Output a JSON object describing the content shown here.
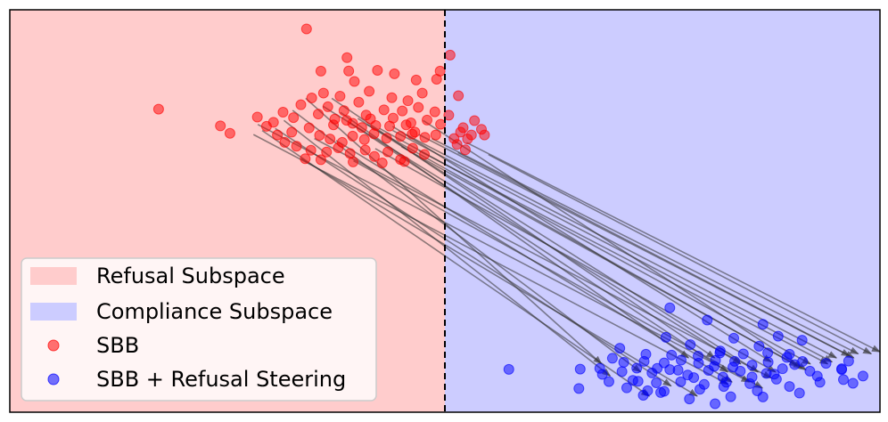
{
  "chart_data": {
    "type": "scatter",
    "title": "",
    "xlabel": "",
    "ylabel": "",
    "xlim": [
      -10.0,
      10.0
    ],
    "ylim": [
      -10.0,
      10.0
    ],
    "grid": false,
    "ticks": false,
    "boundary_x": 0.0,
    "regions": [
      {
        "name": "Refusal Subspace",
        "x_range": [
          -10.0,
          0.0
        ],
        "color": "#ffcccc"
      },
      {
        "name": "Compliance Subspace",
        "x_range": [
          0.0,
          10.0
        ],
        "color": "#ccccff"
      }
    ],
    "legend": {
      "placement": "lower-left",
      "entries": [
        "Refusal Subspace",
        "Compliance Subspace",
        "SBB",
        "SBB + Refusal Steering"
      ]
    },
    "series": [
      {
        "name": "SBB",
        "color": "#ff0000",
        "points": [
          [
            -3.18,
            9.05
          ],
          [
            -2.25,
            7.62
          ],
          [
            -2.85,
            6.95
          ],
          [
            -2.21,
            6.96
          ],
          [
            -2.08,
            6.44
          ],
          [
            -1.55,
            6.99
          ],
          [
            -1.16,
            6.82
          ],
          [
            -0.66,
            6.51
          ],
          [
            -0.11,
            6.95
          ],
          [
            -0.19,
            6.55
          ],
          [
            -6.58,
            5.06
          ],
          [
            -5.16,
            4.23
          ],
          [
            -4.94,
            3.86
          ],
          [
            -4.31,
            4.67
          ],
          [
            -4.1,
            4.21
          ],
          [
            -3.94,
            4.41
          ],
          [
            -3.72,
            4.91
          ],
          [
            -3.48,
            4.64
          ],
          [
            -3.31,
            5.28
          ],
          [
            -3.12,
            4.13
          ],
          [
            -2.91,
            4.82
          ],
          [
            -2.69,
            5.18
          ],
          [
            -2.53,
            4.57
          ],
          [
            -2.32,
            4.99
          ],
          [
            -2.12,
            4.36
          ],
          [
            -1.98,
            5.41
          ],
          [
            -1.81,
            4.77
          ],
          [
            -1.59,
            4.25
          ],
          [
            -1.4,
            5.03
          ],
          [
            -1.19,
            4.62
          ],
          [
            -0.98,
            4.97
          ],
          [
            -0.78,
            4.38
          ],
          [
            -0.61,
            5.15
          ],
          [
            -0.41,
            4.52
          ],
          [
            -0.23,
            4.93
          ],
          [
            -0.1,
            4.31
          ],
          [
            -3.52,
            3.92
          ],
          [
            -2.88,
            3.76
          ],
          [
            -2.64,
            3.58
          ],
          [
            -2.36,
            3.41
          ],
          [
            -2.12,
            3.72
          ],
          [
            -1.85,
            3.55
          ],
          [
            -1.63,
            3.84
          ],
          [
            -1.34,
            3.62
          ],
          [
            -1.02,
            3.71
          ],
          [
            -0.75,
            3.82
          ],
          [
            -0.46,
            3.66
          ],
          [
            -0.21,
            3.78
          ],
          [
            -3.41,
            3.22
          ],
          [
            -3.08,
            3.02
          ],
          [
            -2.72,
            2.93
          ],
          [
            -2.45,
            3.14
          ],
          [
            -2.18,
            2.86
          ],
          [
            -1.83,
            3.03
          ],
          [
            -1.62,
            2.71
          ],
          [
            -1.31,
            2.94
          ],
          [
            -1.02,
            2.56
          ],
          [
            -0.74,
            3.12
          ],
          [
            -0.47,
            2.81
          ],
          [
            -3.68,
            3.41
          ],
          [
            -3.85,
            3.78
          ],
          [
            -3.06,
            5.62
          ],
          [
            -2.79,
            5.86
          ],
          [
            -2.41,
            5.71
          ],
          [
            -1.74,
            5.95
          ],
          [
            -1.22,
            5.63
          ],
          [
            -0.85,
            5.48
          ],
          [
            -0.52,
            5.86
          ],
          [
            -3.21,
            2.6
          ],
          [
            -2.85,
            2.55
          ],
          [
            -2.11,
            2.44
          ],
          [
            -1.44,
            2.39
          ],
          [
            -0.93,
            2.46
          ],
          [
            -2.56,
            4.28
          ],
          [
            -2.26,
            4.51
          ],
          [
            -1.91,
            4.15
          ],
          [
            -1.71,
            4.58
          ],
          [
            -1.27,
            4.22
          ],
          [
            -0.89,
            4.28
          ],
          [
            -0.69,
            3.92
          ],
          [
            0.12,
            7.75
          ],
          [
            0.31,
            5.73
          ],
          [
            0.42,
            4.14
          ],
          [
            0.68,
            4.49
          ],
          [
            0.84,
            4.06
          ],
          [
            0.91,
            3.78
          ],
          [
            0.61,
            3.78
          ],
          [
            0.36,
            3.92
          ],
          [
            0.52,
            3.58
          ],
          [
            0.28,
            3.31
          ],
          [
            0.47,
            3.04
          ],
          [
            0.09,
            4.76
          ],
          [
            0.21,
            3.6
          ]
        ]
      },
      {
        "name": "SBB + Refusal Steering",
        "color": "#0000ff",
        "points": [
          [
            5.17,
            -4.81
          ],
          [
            6.03,
            -5.42
          ],
          [
            7.31,
            -5.63
          ],
          [
            5.08,
            -6.28
          ],
          [
            5.64,
            -6.64
          ],
          [
            6.33,
            -6.96
          ],
          [
            6.64,
            -6.32
          ],
          [
            7.22,
            -6.72
          ],
          [
            7.92,
            -7.12
          ],
          [
            8.21,
            -6.42
          ],
          [
            7.66,
            -6.22
          ],
          [
            1.47,
            -7.87
          ],
          [
            3.77,
            -8.48
          ],
          [
            4.02,
            -6.82
          ],
          [
            3.08,
            -8.82
          ],
          [
            3.11,
            -7.86
          ],
          [
            4.56,
            -9.16
          ],
          [
            5.04,
            -8.96
          ],
          [
            5.86,
            -8.86
          ],
          [
            6.57,
            -9.23
          ],
          [
            7.31,
            -9.24
          ],
          [
            8.15,
            -9.05
          ],
          [
            9.16,
            -8.38
          ],
          [
            9.12,
            -7.88
          ],
          [
            9.38,
            -8.56
          ],
          [
            8.56,
            -8.21
          ],
          [
            3.56,
            -7.82
          ],
          [
            4.07,
            -7.98
          ],
          [
            4.41,
            -7.81
          ],
          [
            4.76,
            -8.05
          ],
          [
            5.17,
            -7.88
          ],
          [
            5.58,
            -8.15
          ],
          [
            6.06,
            -7.92
          ],
          [
            6.39,
            -8.26
          ],
          [
            6.79,
            -7.96
          ],
          [
            7.06,
            -8.25
          ],
          [
            7.39,
            -8.07
          ],
          [
            7.76,
            -7.84
          ],
          [
            8.04,
            -7.63
          ],
          [
            8.39,
            -7.96
          ],
          [
            8.76,
            -7.57
          ],
          [
            4.11,
            -7.52
          ],
          [
            4.58,
            -7.47
          ],
          [
            5.04,
            -7.55
          ],
          [
            5.43,
            -7.41
          ],
          [
            5.83,
            -7.56
          ],
          [
            6.22,
            -7.42
          ],
          [
            6.66,
            -7.47
          ],
          [
            7.06,
            -7.66
          ],
          [
            7.43,
            -7.51
          ],
          [
            7.86,
            -7.28
          ],
          [
            4.32,
            -8.42
          ],
          [
            4.86,
            -8.54
          ],
          [
            5.42,
            -8.49
          ],
          [
            5.96,
            -8.62
          ],
          [
            6.47,
            -8.51
          ],
          [
            7.01,
            -8.58
          ],
          [
            7.62,
            -8.36
          ],
          [
            4.62,
            -7.12
          ],
          [
            5.21,
            -7.16
          ],
          [
            5.82,
            -7.21
          ],
          [
            6.32,
            -7.06
          ],
          [
            6.86,
            -7.1
          ],
          [
            7.42,
            -7.05
          ],
          [
            3.85,
            -7.32
          ],
          [
            3.62,
            -8.12
          ],
          [
            4.18,
            -8.79
          ],
          [
            4.96,
            -9.02
          ],
          [
            5.72,
            -8.28
          ],
          [
            6.41,
            -8.72
          ],
          [
            7.18,
            -8.94
          ],
          [
            7.92,
            -8.72
          ],
          [
            8.62,
            -8.51
          ],
          [
            6.19,
            -7.72
          ],
          [
            6.62,
            -7.76
          ],
          [
            5.36,
            -7.91
          ],
          [
            4.88,
            -7.82
          ],
          [
            8.22,
            -7.48
          ],
          [
            9.12,
            -7.84
          ],
          [
            9.61,
            -8.2
          ],
          [
            9.28,
            -7.46
          ],
          [
            7.57,
            -8.11
          ],
          [
            4.44,
            -8.46
          ],
          [
            5.62,
            -9.34
          ],
          [
            6.21,
            -9.58
          ],
          [
            4.66,
            -8.93
          ]
        ]
      }
    ],
    "arrows": [
      {
        "from": [
          -2.6,
          5.6
        ],
        "to": [
          6.2,
          -7.3
        ]
      },
      {
        "from": [
          -2.8,
          5.2
        ],
        "to": [
          6.8,
          -7.6
        ]
      },
      {
        "from": [
          -2.4,
          4.9
        ],
        "to": [
          5.6,
          -7.3
        ]
      },
      {
        "from": [
          -2.2,
          4.4
        ],
        "to": [
          6.5,
          -8.0
        ]
      },
      {
        "from": [
          -2.0,
          4.6
        ],
        "to": [
          7.2,
          -8.0
        ]
      },
      {
        "from": [
          -1.8,
          4.3
        ],
        "to": [
          8.1,
          -7.7
        ]
      },
      {
        "from": [
          -1.5,
          4.1
        ],
        "to": [
          8.4,
          -7.6
        ]
      },
      {
        "from": [
          -1.2,
          4.0
        ],
        "to": [
          8.9,
          -7.5
        ]
      },
      {
        "from": [
          -0.9,
          3.8
        ],
        "to": [
          9.0,
          -7.3
        ]
      },
      {
        "from": [
          -0.6,
          3.8
        ],
        "to": [
          9.3,
          -7.2
        ]
      },
      {
        "from": [
          -0.3,
          3.6
        ],
        "to": [
          9.5,
          -7.1
        ]
      },
      {
        "from": [
          0.5,
          3.4
        ],
        "to": [
          10.0,
          -7.0
        ]
      },
      {
        "from": [
          -3.2,
          5.6
        ],
        "to": [
          3.6,
          -7.6
        ]
      },
      {
        "from": [
          -3.5,
          5.0
        ],
        "to": [
          4.5,
          -8.0
        ]
      },
      {
        "from": [
          -3.7,
          4.5
        ],
        "to": [
          3.8,
          -8.2
        ]
      },
      {
        "from": [
          -3.9,
          4.1
        ],
        "to": [
          5.2,
          -8.7
        ]
      },
      {
        "from": [
          -4.2,
          4.0
        ],
        "to": [
          4.7,
          -9.2
        ]
      },
      {
        "from": [
          -4.4,
          3.8
        ],
        "to": [
          6.5,
          -8.6
        ]
      },
      {
        "from": [
          -4.3,
          4.3
        ],
        "to": [
          7.0,
          -8.5
        ]
      },
      {
        "from": [
          -3.0,
          3.6
        ],
        "to": [
          7.5,
          -8.3
        ]
      },
      {
        "from": [
          -2.5,
          3.5
        ],
        "to": [
          6.6,
          -8.5
        ]
      },
      {
        "from": [
          -1.6,
          3.1
        ],
        "to": [
          7.6,
          -8.0
        ]
      },
      {
        "from": [
          -1.0,
          3.2
        ],
        "to": [
          8.2,
          -7.8
        ]
      },
      {
        "from": [
          -0.6,
          3.0
        ],
        "to": [
          8.8,
          -7.6
        ]
      },
      {
        "from": [
          0.3,
          2.9
        ],
        "to": [
          9.4,
          -7.3
        ]
      },
      {
        "from": [
          1.0,
          2.8
        ],
        "to": [
          9.8,
          -7.1
        ]
      },
      {
        "from": [
          -3.3,
          2.6
        ],
        "to": [
          5.8,
          -9.2
        ]
      },
      {
        "from": [
          -2.1,
          2.5
        ],
        "to": [
          7.3,
          -8.8
        ]
      },
      {
        "from": [
          -1.2,
          4.2
        ],
        "to": [
          7.5,
          -7.5
        ]
      },
      {
        "from": [
          -0.5,
          4.5
        ],
        "to": [
          8.3,
          -7.9
        ]
      }
    ]
  }
}
